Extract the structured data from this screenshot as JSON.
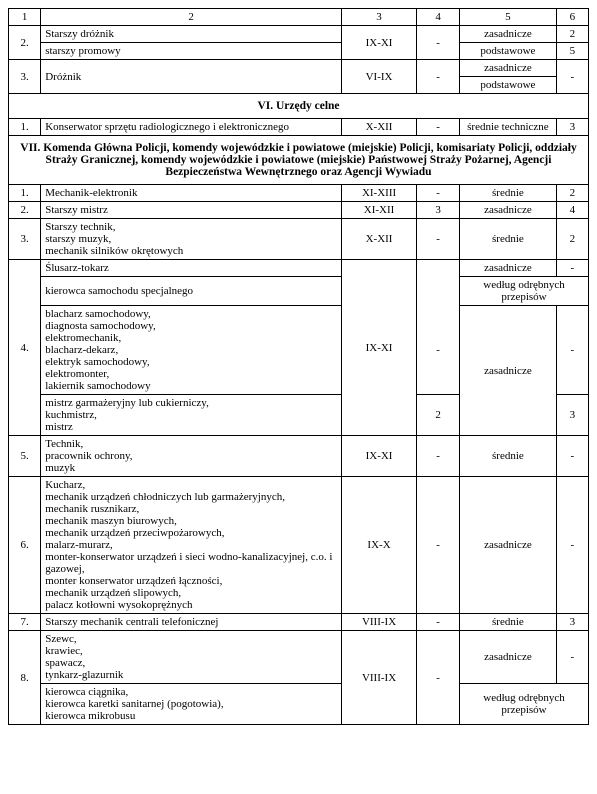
{
  "headers": {
    "c1": "1",
    "c2": "2",
    "c3": "3",
    "c4": "4",
    "c5": "5",
    "c6": "6"
  },
  "topRows": {
    "r1_num": "2.",
    "r1_name": "Starszy dróżnik",
    "r1_col3": "IX-XI",
    "r1_col4": "-",
    "r1_c5": "zasadnicze",
    "r1_c6": "2",
    "r2_name": "starszy promowy",
    "r2_c5": "podstawowe",
    "r2_c6": "5",
    "r3_num": "3.",
    "r3_name": "Dróżnik",
    "r3_col3": "VI-IX",
    "r3_col4": "-",
    "r3_c5": "zasadnicze",
    "r3_c6": "-",
    "r4_c5": "podstawowe"
  },
  "section6": {
    "title": "VI. Urzędy celne",
    "row1_num": "1.",
    "row1_name": "Konserwator sprzętu radiologicznego i elektronicznego",
    "row1_c3": "X-XII",
    "row1_c4": "-",
    "row1_c5": "średnie techniczne",
    "row1_c6": "3"
  },
  "section7": {
    "title": "VII. Komenda Główna Policji, komendy wojewódzkie i powiatowe (miejskie) Policji, komisariaty Policji, oddziały Straży Granicznej, komendy wojewódzkie i powiatowe (miejskie) Państwowej Straży Pożarnej, Agencji Bezpieczeństwa Wewnętrznego oraz Agencji Wywiadu",
    "r1_num": "1.",
    "r1_name": "Mechanik-elektronik",
    "r1_c3": "XI-XIII",
    "r1_c4": "-",
    "r1_c5": "średnie",
    "r1_c6": "2",
    "r2_num": "2.",
    "r2_name": "Starszy mistrz",
    "r2_c3": "XI-XII",
    "r2_c4": "3",
    "r2_c5": "zasadnicze",
    "r2_c6": "4",
    "r3_num": "3.",
    "r3_name": "Starszy technik,\nstarszy muzyk,\nmechanik silników okrętowych",
    "r3_c3": "X-XII",
    "r3_c4": "-",
    "r3_c5": "średnie",
    "r3_c6": "2",
    "r4_num": "4.",
    "r4a_name": "Ślusarz-tokarz",
    "r4a_c5": "zasadnicze",
    "r4a_c6": "-",
    "r4b_name": "kierowca samochodu specjalnego",
    "r4b_c56": "według odrębnych przepisów",
    "r4c_name": "blacharz samochodowy,\ndiagnosta samochodowy,\nelektromechanik,\nblacharz-dekarz,\nelektryk samochodowy,\nelektromonter,\nlakiernik samochodowy",
    "r4_c3": "IX-XI",
    "r4c_c4": "-",
    "r4c_c5": "zasadnicze",
    "r4c_c6": "-",
    "r4d_name": "mistrz garmażeryjny lub cukierniczy,\nkuchmistrz,\nmistrz",
    "r4d_c4": "2",
    "r4d_c6": "3",
    "r5_num": "5.",
    "r5_name": "Technik,\npracownik ochrony,\nmuzyk",
    "r5_c3": "IX-XI",
    "r5_c4": "-",
    "r5_c5": "średnie",
    "r5_c6": "-",
    "r6_num": "6.",
    "r6_name": "Kucharz,\nmechanik urządzeń chłodniczych lub garmażeryjnych,\nmechanik rusznikarz,\nmechanik maszyn biurowych,\nmechanik urządzeń przeciwpożarowych,\nmalarz-murarz,\nmonter-konserwator urządzeń i sieci wodno-kanalizacyjnej, c.o. i gazowej,\nmonter konserwator urządzeń łączności,\nmechanik urządzeń slipowych,\npalacz kotłowni wysokoprężnych",
    "r6_c3": "IX-X",
    "r6_c4": "-",
    "r6_c5": "zasadnicze",
    "r6_c6": "-",
    "r7_num": "7.",
    "r7_name": "Starszy mechanik centrali telefonicznej",
    "r7_c3": "VIII-IX",
    "r7_c4": "-",
    "r7_c5": "średnie",
    "r7_c6": "3",
    "r8_num": "8.",
    "r8a_name": "Szewc,\nkrawiec,\nspawacz,\ntynkarz-glazurnik",
    "r8_c3": "VIII-IX",
    "r8_c4": "-",
    "r8a_c5": "zasadnicze",
    "r8a_c6": "-",
    "r8b_name": "kierowca ciągnika,\nkierowca karetki sanitarnej (pogotowia),\nkierowca mikrobusu",
    "r8b_c56": "według odrębnych przepisów"
  }
}
